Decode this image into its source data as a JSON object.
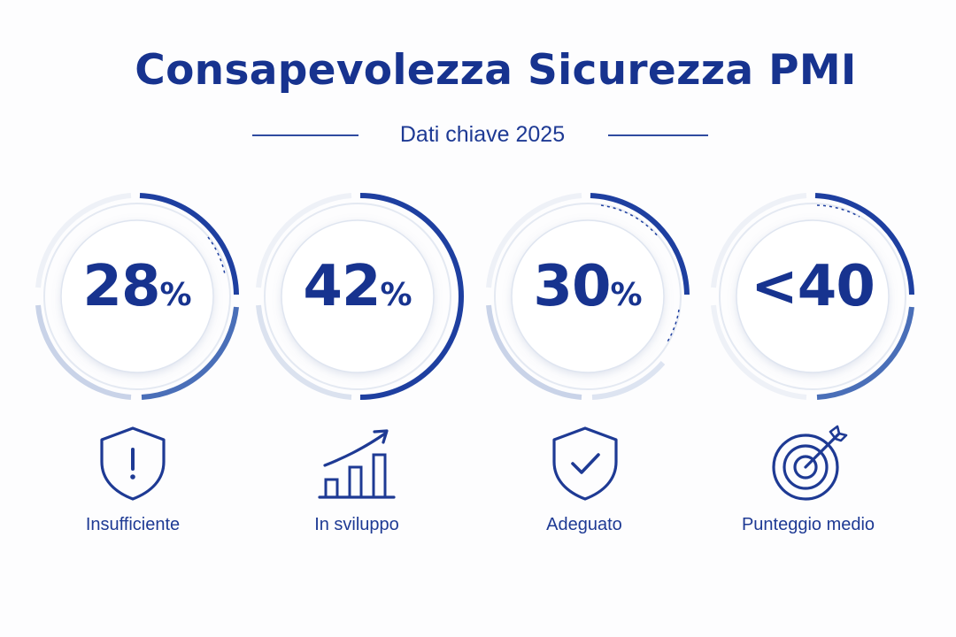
{
  "title": "Consapevolezza Sicurezza PMI",
  "subtitle": "Dati chiave 2025",
  "stats": [
    {
      "value": "28",
      "suffix": "%",
      "label": "Insufficiente",
      "icon": "shield-warning-icon"
    },
    {
      "value": "42",
      "suffix": "%",
      "label": "In sviluppo",
      "icon": "growth-chart-icon"
    },
    {
      "value": "30",
      "suffix": "%",
      "label": "Adeguato",
      "icon": "shield-check-icon"
    },
    {
      "value": "<40",
      "suffix": "",
      "label": "Punteggio medio",
      "icon": "target-icon"
    }
  ],
  "colors": {
    "primary": "#17338f",
    "accent": "#2f56a8",
    "ring_light": "#e4e9f2"
  }
}
